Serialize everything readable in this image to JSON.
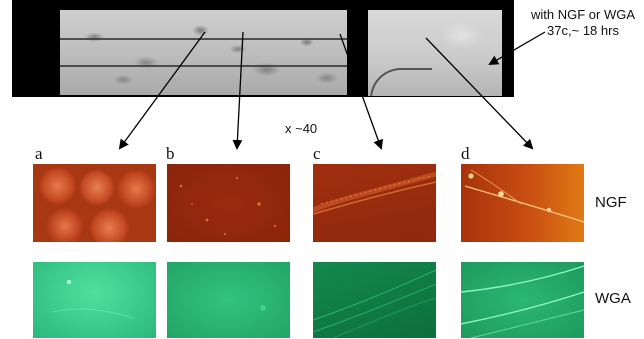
{
  "annotation": {
    "line1": "with NGF or WGA",
    "line2": "37c,~ 18 hrs"
  },
  "magnification": "x ~40",
  "panels": [
    "a",
    "b",
    "c",
    "d"
  ],
  "rows": {
    "top_label": "NGF",
    "bottom_label": "WGA"
  },
  "colors": {
    "ngf_tint": "#b5401a",
    "wga_tint": "#2bb37a",
    "strip_bg": "#000000"
  }
}
